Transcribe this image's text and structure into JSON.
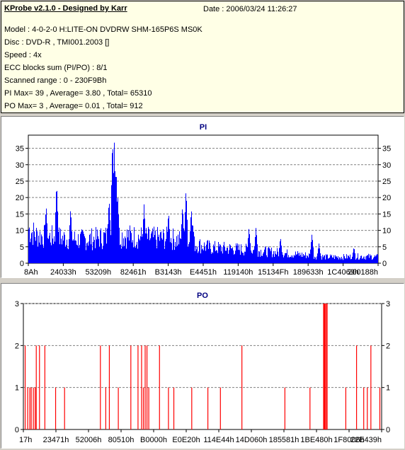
{
  "header": {
    "title": "KProbe v2.1.0 - Designed by Karr",
    "date": "Date : 2006/03/24 11:26:27",
    "lines": [
      "Model : 4-0-2-0 H:LITE-ON DVDRW SHM-165P6S MS0K",
      "Disc : DVD-R , TMI001.2003 []",
      "Speed : 4x",
      "ECC blocks sum (PI/PO) : 8/1",
      "Scanned range : 0 - 230F9Bh",
      "PI Max= 39 , Average= 3.80 , Total= 65310",
      "PO Max= 3 , Average= 0.01 , Total= 912"
    ]
  },
  "chart_data": [
    {
      "type": "bar",
      "title": "PI",
      "color": "#0000ff",
      "ylim": [
        0,
        39
      ],
      "yticks": [
        0,
        5,
        10,
        15,
        20,
        25,
        30,
        35
      ],
      "grid": true,
      "xtick_labels": [
        "8Ah",
        "24033h",
        "53209h",
        "82461h",
        "B3143h",
        "E4451h",
        "119140h",
        "15134Fh",
        "189633h",
        "1C4069h",
        "200188h"
      ],
      "x_range": [
        0,
        1
      ],
      "baseline_approx": [
        [
          0.0,
          11
        ],
        [
          0.02,
          9
        ],
        [
          0.05,
          8.5
        ],
        [
          0.1,
          8
        ],
        [
          0.15,
          7.5
        ],
        [
          0.2,
          8
        ],
        [
          0.25,
          9
        ],
        [
          0.3,
          8.5
        ],
        [
          0.35,
          8
        ],
        [
          0.4,
          8
        ],
        [
          0.45,
          7
        ],
        [
          0.48,
          6
        ],
        [
          0.52,
          5
        ],
        [
          0.6,
          4.5
        ],
        [
          0.65,
          4
        ],
        [
          0.7,
          3.5
        ],
        [
          0.75,
          3
        ],
        [
          0.8,
          2.5
        ],
        [
          0.85,
          2
        ],
        [
          0.9,
          2
        ],
        [
          0.95,
          2.2
        ],
        [
          1.0,
          2
        ]
      ],
      "spikes": [
        [
          0.08,
          25
        ],
        [
          0.05,
          18
        ],
        [
          0.12,
          17
        ],
        [
          0.24,
          39
        ],
        [
          0.245,
          37
        ],
        [
          0.25,
          30
        ],
        [
          0.255,
          20
        ],
        [
          0.23,
          20
        ],
        [
          0.33,
          18
        ],
        [
          0.4,
          16
        ],
        [
          0.44,
          18
        ],
        [
          0.465,
          17
        ],
        [
          0.45,
          23
        ],
        [
          0.47,
          12
        ],
        [
          0.63,
          11
        ],
        [
          0.65,
          11
        ],
        [
          0.72,
          8
        ],
        [
          0.81,
          9
        ],
        [
          0.83,
          6
        ],
        [
          0.93,
          5
        ]
      ]
    },
    {
      "type": "bar",
      "title": "PO",
      "color": "#ff0000",
      "ylim": [
        0,
        3
      ],
      "yticks": [
        0,
        1,
        2,
        3
      ],
      "grid": true,
      "xtick_labels": [
        "17h",
        "23471h",
        "52006h",
        "80510h",
        "B0000h",
        "E0E20h",
        "114E44h",
        "14D060h",
        "185581h",
        "1BE480h",
        "1F8006h",
        "22E439h"
      ],
      "x_range": [
        0,
        1
      ],
      "bars": [
        [
          0.005,
          2
        ],
        [
          0.012,
          1
        ],
        [
          0.018,
          1
        ],
        [
          0.022,
          1
        ],
        [
          0.028,
          1
        ],
        [
          0.033,
          1
        ],
        [
          0.036,
          2
        ],
        [
          0.045,
          2
        ],
        [
          0.06,
          2
        ],
        [
          0.09,
          1
        ],
        [
          0.115,
          1
        ],
        [
          0.215,
          2
        ],
        [
          0.23,
          1
        ],
        [
          0.24,
          2
        ],
        [
          0.265,
          1
        ],
        [
          0.3,
          2
        ],
        [
          0.32,
          2
        ],
        [
          0.33,
          2
        ],
        [
          0.335,
          1
        ],
        [
          0.34,
          2
        ],
        [
          0.345,
          2
        ],
        [
          0.35,
          1
        ],
        [
          0.38,
          2
        ],
        [
          0.405,
          1
        ],
        [
          0.42,
          1
        ],
        [
          0.47,
          1
        ],
        [
          0.515,
          1
        ],
        [
          0.55,
          1
        ],
        [
          0.61,
          2
        ],
        [
          0.73,
          1
        ],
        [
          0.8,
          1
        ],
        [
          0.838,
          3
        ],
        [
          0.84,
          3
        ],
        [
          0.842,
          3
        ],
        [
          0.845,
          3
        ],
        [
          0.848,
          3
        ],
        [
          0.9,
          1
        ],
        [
          0.93,
          2
        ],
        [
          0.95,
          1
        ],
        [
          0.96,
          1
        ],
        [
          0.97,
          2
        ],
        [
          0.995,
          1
        ]
      ]
    }
  ]
}
